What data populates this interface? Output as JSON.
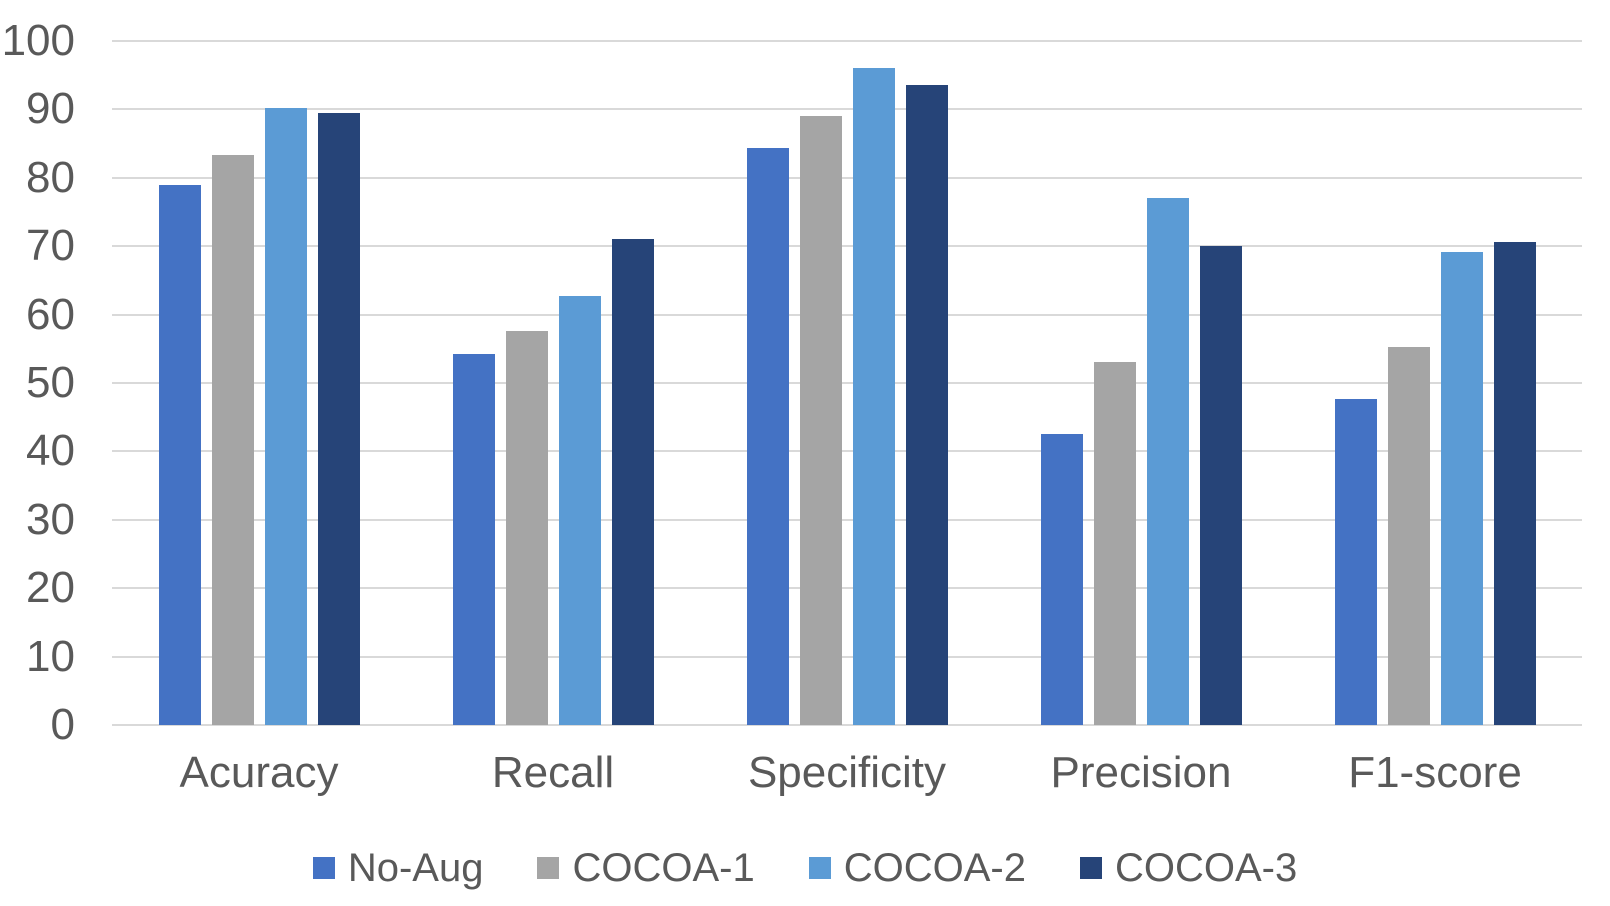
{
  "chart_data": {
    "type": "bar",
    "title": "",
    "xlabel": "",
    "ylabel": "",
    "categories": [
      "Acuracy",
      "Recall",
      "Specificity",
      "Precision",
      "F1-score"
    ],
    "series": [
      {
        "name": "No-Aug",
        "color": "#4472C4",
        "values": [
          79.0,
          54.2,
          84.3,
          42.6,
          47.7
        ]
      },
      {
        "name": "COCOA-1",
        "color": "#A5A5A5",
        "values": [
          83.4,
          57.6,
          89.0,
          53.1,
          55.2
        ]
      },
      {
        "name": "COCOA-2",
        "color": "#5B9BD5",
        "values": [
          90.2,
          62.7,
          96.0,
          77.0,
          69.2
        ]
      },
      {
        "name": "COCOA-3",
        "color": "#264478",
        "values": [
          89.5,
          71.1,
          93.5,
          70.0,
          70.6
        ]
      }
    ],
    "ylim": [
      0,
      100
    ],
    "yticks": [
      0,
      10,
      20,
      30,
      40,
      50,
      60,
      70,
      80,
      90,
      100
    ],
    "grid": true,
    "gridline_color": "#D9D9D9",
    "text_color": "#595959",
    "background_color": "#FFFFFF",
    "legend_position": "bottom"
  }
}
